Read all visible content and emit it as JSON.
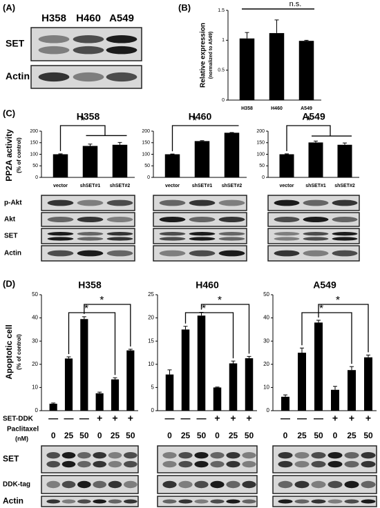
{
  "panels": {
    "a": {
      "label": "(A)",
      "lanes": [
        "H358",
        "H460",
        "A549"
      ],
      "rows": [
        "SET",
        "Actin"
      ]
    },
    "b": {
      "label": "(B)"
    },
    "c": {
      "label": "(C)",
      "y_label": "PP2A activity",
      "y_sublabel": "(% of control)",
      "blot_rows": [
        "p-Akt",
        "Akt",
        "SET",
        "Actin"
      ]
    },
    "d": {
      "label": "(D)",
      "y_label": "Apoptotic cell",
      "y_sublabel": "(% of control)",
      "row_labels": [
        "SET-DDK",
        "Paclitaxel",
        "(nM)"
      ],
      "blot_rows": [
        "SET",
        "DDK-tag",
        "Actin"
      ]
    }
  },
  "chart_data": [
    {
      "type": "bar",
      "y_label": "Relative expression",
      "y_sublabel": "(normalized to A549)",
      "categories": [
        "H358",
        "H460",
        "A549"
      ],
      "values": [
        1.03,
        1.12,
        0.99
      ],
      "errors": [
        0.1,
        0.22,
        0.01
      ],
      "color": "#000000",
      "ylim": [
        0,
        1.5
      ],
      "yticks": [
        0,
        0.5,
        1,
        1.5
      ],
      "annotations": [
        "n.s."
      ]
    },
    {
      "type": "bar",
      "title": "H358",
      "categories": [
        "vector",
        "shSET#1",
        "shSET#2"
      ],
      "values": [
        100,
        136,
        141
      ],
      "errors": [
        2,
        8,
        10
      ],
      "color": "#000000",
      "ylim": [
        0,
        200
      ],
      "yticks": [
        0,
        50,
        100,
        150,
        200
      ],
      "annotations": [
        "*"
      ]
    },
    {
      "type": "bar",
      "title": "H460",
      "categories": [
        "vector",
        "shSET#1",
        "shSET#2"
      ],
      "values": [
        100,
        157,
        193
      ],
      "errors": [
        1,
        2,
        1
      ],
      "color": "#000000",
      "ylim": [
        0,
        200
      ],
      "yticks": [
        0,
        50,
        100,
        150,
        200
      ],
      "annotations": [
        "*"
      ]
    },
    {
      "type": "bar",
      "title": "A549",
      "categories": [
        "vector",
        "shSET#1",
        "shSET#2"
      ],
      "values": [
        100,
        151,
        141
      ],
      "errors": [
        2,
        6,
        8
      ],
      "color": "#000000",
      "ylim": [
        0,
        200
      ],
      "yticks": [
        0,
        50,
        100,
        150,
        200
      ],
      "annotations": [
        "*"
      ]
    },
    {
      "type": "bar",
      "title": "H358",
      "categories": [
        "0",
        "25",
        "50",
        "0",
        "25",
        "50"
      ],
      "set_ddk": [
        "—",
        "—",
        "—",
        "+",
        "+",
        "+"
      ],
      "values": [
        3,
        22.5,
        39.5,
        7.5,
        13.5,
        26
      ],
      "errors": [
        0.3,
        0.7,
        1,
        0.5,
        0.7,
        0.5
      ],
      "color": "#000000",
      "ylim": [
        0,
        50
      ],
      "yticks": [
        0,
        10,
        20,
        30,
        40,
        50
      ],
      "annotations": [
        "*",
        "*"
      ]
    },
    {
      "type": "bar",
      "title": "H460",
      "categories": [
        "0",
        "25",
        "50",
        "0",
        "25",
        "50"
      ],
      "set_ddk": [
        "—",
        "—",
        "—",
        "+",
        "+",
        "+"
      ],
      "values": [
        7.8,
        17.5,
        20.5,
        5,
        10.2,
        11.3
      ],
      "errors": [
        1,
        0.7,
        0.7,
        0.1,
        0.5,
        0.4
      ],
      "color": "#000000",
      "ylim": [
        0,
        25
      ],
      "yticks": [
        0,
        5,
        10,
        15,
        20,
        25
      ],
      "annotations": [
        "*",
        "*"
      ]
    },
    {
      "type": "bar",
      "title": "A549",
      "categories": [
        "0",
        "25",
        "50",
        "0",
        "25",
        "50"
      ],
      "set_ddk": [
        "—",
        "—",
        "—",
        "+",
        "+",
        "+"
      ],
      "values": [
        6,
        25,
        38,
        9,
        17.5,
        23
      ],
      "errors": [
        0.8,
        2,
        1,
        1.5,
        1.5,
        1
      ],
      "color": "#000000",
      "ylim": [
        0,
        50
      ],
      "yticks": [
        0,
        10,
        20,
        30,
        40,
        50
      ],
      "annotations": [
        "*",
        "*"
      ]
    }
  ]
}
